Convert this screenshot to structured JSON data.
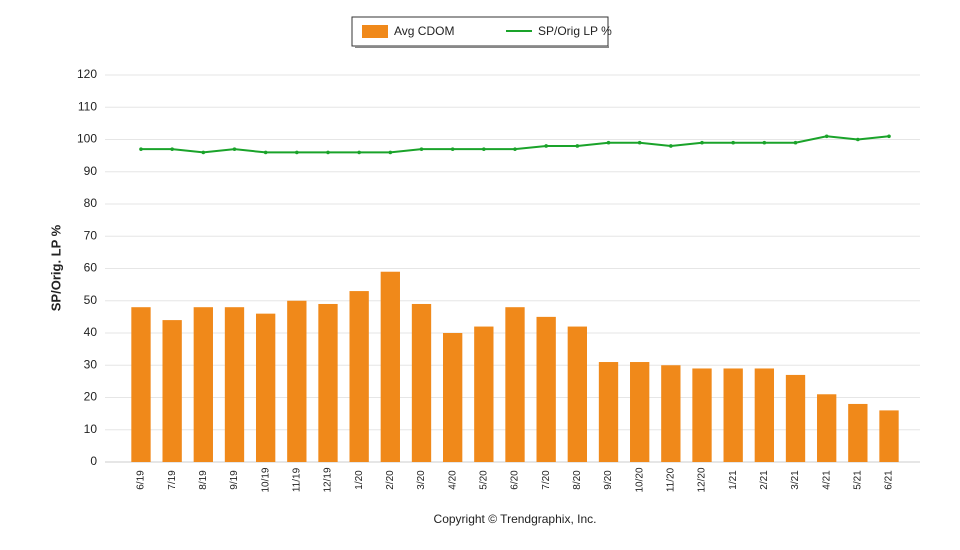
{
  "chart_data": {
    "type": "bar",
    "y_label": "SP/Orig. LP %",
    "footer": "Copyright © Trendgraphix, Inc.",
    "categories": [
      "6/19",
      "7/19",
      "8/19",
      "9/19",
      "10/19",
      "11/19",
      "12/19",
      "1/20",
      "2/20",
      "3/20",
      "4/20",
      "5/20",
      "6/20",
      "7/20",
      "8/20",
      "9/20",
      "10/20",
      "11/20",
      "12/20",
      "1/21",
      "2/21",
      "3/21",
      "4/21",
      "5/21",
      "6/21"
    ],
    "series": [
      {
        "name": "Avg CDOM",
        "type": "bar",
        "color": "#f0891a",
        "values": [
          48,
          44,
          48,
          48,
          46,
          50,
          49,
          53,
          59,
          49,
          40,
          42,
          48,
          45,
          42,
          31,
          31,
          30,
          29,
          29,
          29,
          27,
          21,
          18,
          16
        ]
      },
      {
        "name": "SP/Orig LP %",
        "type": "line",
        "color": "#1aa32a",
        "values": [
          97,
          97,
          96,
          97,
          96,
          96,
          96,
          96,
          96,
          97,
          97,
          97,
          97,
          98,
          98,
          99,
          99,
          98,
          99,
          99,
          99,
          99,
          101,
          100,
          101
        ]
      }
    ],
    "ylim": [
      0,
      120
    ],
    "yticks": [
      0,
      10,
      20,
      30,
      40,
      50,
      60,
      70,
      80,
      90,
      100,
      110,
      120
    ],
    "grid": true,
    "legend": "top"
  }
}
